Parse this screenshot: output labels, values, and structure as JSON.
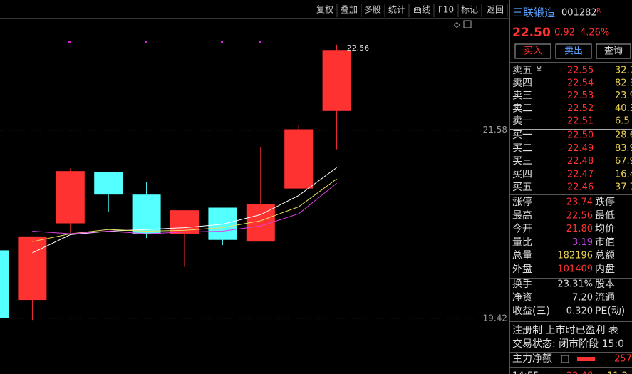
{
  "toolbar": [
    "复权",
    "叠加",
    "多股",
    "统计",
    "画线",
    "F10",
    "标记",
    "返回"
  ],
  "chart_data": {
    "type": "candlestick",
    "high_label": "22.56",
    "categories": [
      null,
      null,
      null,
      null,
      null,
      null,
      null,
      null,
      null,
      null
    ],
    "open": [
      20.2,
      19.63,
      20.51,
      21.1,
      20.84,
      20.39,
      20.69,
      20.3,
      20.91,
      21.8
    ],
    "high": [
      20.2,
      20.36,
      21.14,
      21.1,
      20.98,
      20.66,
      20.69,
      21.38,
      21.64,
      22.56
    ],
    "low": [
      19.42,
      19.4,
      20.4,
      20.64,
      20.34,
      20.01,
      20.26,
      20.3,
      20.91,
      21.36
    ],
    "close": [
      19.42,
      20.36,
      21.11,
      20.84,
      20.39,
      20.66,
      20.32,
      20.73,
      21.59,
      22.5
    ],
    "up_color": "#ff3232",
    "down_color": "#54ffff",
    "lines": [
      {
        "color": "#ffffff",
        "values": [
          null,
          20.17,
          20.38,
          20.42,
          20.44,
          20.46,
          20.5,
          20.61,
          20.83,
          21.15
        ]
      },
      {
        "color": "#e8e060",
        "values": [
          null,
          20.3,
          20.39,
          20.44,
          20.42,
          20.43,
          20.46,
          20.54,
          20.7,
          21.02
        ]
      },
      {
        "color": "#e040e0",
        "values": [
          null,
          20.42,
          20.39,
          20.42,
          20.39,
          20.41,
          20.42,
          20.48,
          20.62,
          20.97
        ]
      }
    ],
    "ylim": [
      18.78,
      22.87
    ],
    "yticks": [
      19.42,
      21.58
    ],
    "grid": true
  },
  "panel": {
    "name": "三联锻造",
    "code": "001282",
    "tag": "R",
    "price": "22.50",
    "change": "0.92",
    "pct": "4.26%",
    "buttons": [
      "买入",
      "卖出",
      "查询"
    ],
    "sell_icon": "¥",
    "asks": [
      [
        "卖五",
        "22.55",
        "32.7"
      ],
      [
        "卖四",
        "22.54",
        "82.3"
      ],
      [
        "卖三",
        "22.53",
        "23.9"
      ],
      [
        "卖二",
        "22.52",
        "40.3"
      ],
      [
        "卖一",
        "22.51",
        "6.5"
      ]
    ],
    "bids": [
      [
        "买一",
        "22.50",
        "28.6"
      ],
      [
        "买二",
        "22.49",
        "83.9"
      ],
      [
        "买三",
        "22.48",
        "67.9"
      ],
      [
        "买四",
        "22.47",
        "16.4"
      ],
      [
        "买五",
        "22.46",
        "37.7"
      ]
    ],
    "stats": [
      [
        "涨停",
        "23.74",
        "跌停"
      ],
      [
        "最高",
        "22.56",
        "最低"
      ],
      [
        "今开",
        "21.80",
        "均价"
      ],
      [
        "量比",
        "3.19",
        "市值"
      ],
      [
        "总量",
        "182196",
        "总额"
      ],
      [
        "外盘",
        "101409",
        "内盘"
      ]
    ],
    "stats2": [
      [
        "换手",
        "23.31%",
        "股本"
      ],
      [
        "净资",
        "7.20",
        "流通"
      ],
      [
        "收益(三)",
        "0.320",
        "PE(动)"
      ]
    ],
    "note": "注册制 上市时已盈利 表",
    "status": "交易状态: 闭市阶段 15:0",
    "main_flow": "主力净额",
    "main_flow_value": "257",
    "tick": [
      "14:55",
      "22.48",
      "11.2"
    ]
  }
}
